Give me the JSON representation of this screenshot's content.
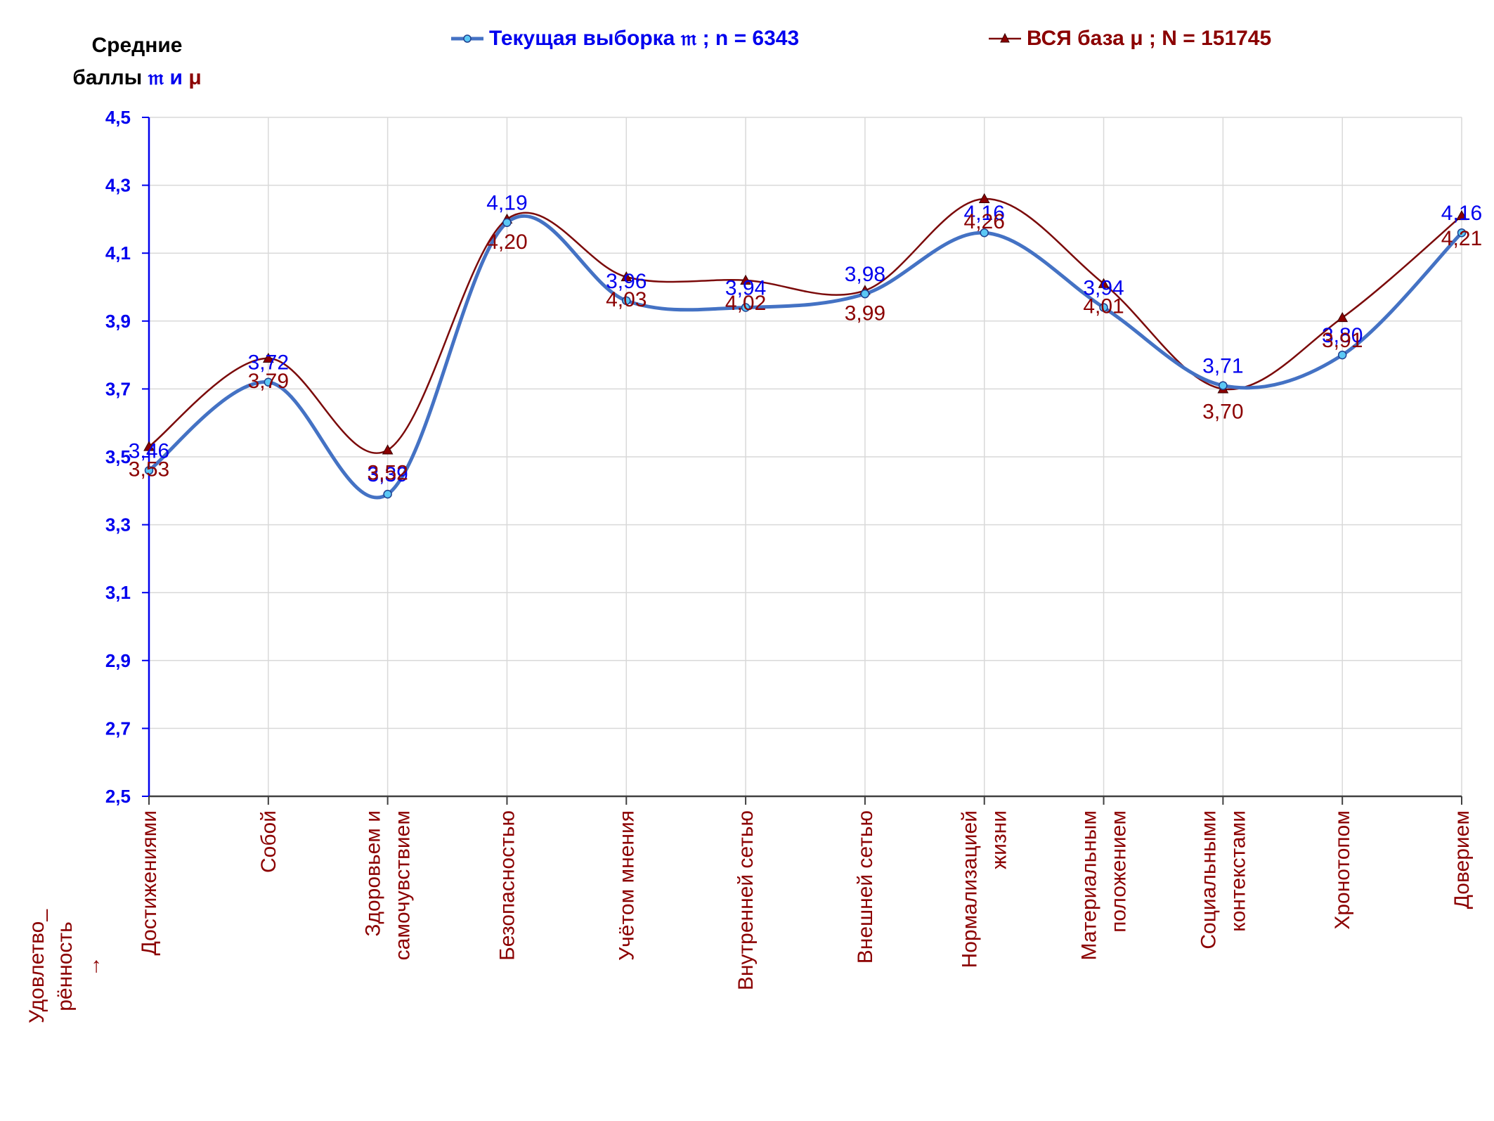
{
  "chart_data": {
    "type": "line",
    "y_title_line1": "Средние",
    "y_title_line2_prefix": "баллы",
    "y_title_sym1": "𝔪",
    "y_title_and": "и",
    "y_title_sym2": "μ",
    "x_axis_label": [
      "Удовлетво_",
      "рённость",
      "→"
    ],
    "categories": [
      [
        "Достижениями"
      ],
      [
        "Собой"
      ],
      [
        "Здоровьем и",
        "самочувствием"
      ],
      [
        "Безопасностью"
      ],
      [
        "Учётом мнения"
      ],
      [
        "Внутренней сетью"
      ],
      [
        "Внешней сетью"
      ],
      [
        "Нормализацией",
        "жизни"
      ],
      [
        "Материальным",
        "положением"
      ],
      [
        "Социальными",
        "контекстами"
      ],
      [
        "Хронотопом"
      ],
      [
        "Доверием"
      ]
    ],
    "yticks": [
      "4,5",
      "4,3",
      "4,1",
      "3,9",
      "3,7",
      "3,5",
      "3,3",
      "3,1",
      "2,9",
      "2,7",
      "2,5"
    ],
    "ylim": [
      2.5,
      4.5
    ],
    "grid": true,
    "legend_position": "top",
    "series": [
      {
        "name": "Текущая выборка 𝔪 ; n = 6343",
        "color": "#4472c4",
        "label_color": "#0000ee",
        "marker": "circle",
        "values": [
          3.46,
          3.72,
          3.39,
          4.19,
          3.96,
          3.94,
          3.98,
          4.16,
          3.94,
          3.71,
          3.8,
          4.16
        ],
        "labels": [
          "3,46",
          "3,72",
          "3,39",
          "4,19",
          "3,96",
          "3,94",
          "3,98",
          "4,16",
          "3,94",
          "3,71",
          "3,80",
          "4,16"
        ]
      },
      {
        "name": "ВСЯ база μ ; N = 151745",
        "color": "#7b0a0a",
        "label_color": "#8b0000",
        "marker": "triangle",
        "values": [
          3.53,
          3.79,
          3.52,
          4.2,
          4.03,
          4.02,
          3.99,
          4.26,
          4.01,
          3.7,
          3.91,
          4.21
        ],
        "labels": [
          "3,53",
          "3,79",
          "3,52",
          "4,20",
          "4,03",
          "4,02",
          "3,99",
          "4,26",
          "4,01",
          "3,70",
          "3,91",
          "4,21"
        ]
      }
    ]
  }
}
